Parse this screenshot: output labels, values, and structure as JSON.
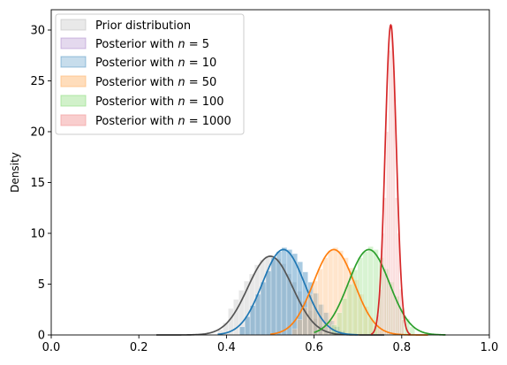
{
  "chart_data": {
    "type": "histogram_kde",
    "title": "",
    "xlabel": "",
    "ylabel": "Density",
    "xlim": [
      0.0,
      1.0
    ],
    "ylim": [
      0,
      32
    ],
    "x_ticks": [
      "0.0",
      "0.2",
      "0.4",
      "0.6",
      "0.8",
      "1.0"
    ],
    "y_ticks": [
      "0",
      "5",
      "10",
      "15",
      "20",
      "25",
      "30"
    ],
    "grid": false,
    "legend_position": "top-left",
    "series": [
      {
        "name": "Prior distribution",
        "color": "#555555",
        "fill": "#bfbfbf",
        "bins": {
          "x_start": 0.38,
          "x_end": 0.62,
          "heights": [
            0.5,
            1.2,
            2.6,
            3.5,
            4.4,
            5.3,
            6.0,
            6.9,
            7.4,
            7.7,
            7.8,
            7.5,
            7.0,
            6.0,
            5.2,
            4.3,
            3.3,
            2.4,
            1.6,
            0.9
          ]
        },
        "kde": {
          "peak_x": 0.5,
          "peak_y": 7.75,
          "sd": 0.051,
          "range": [
            0.24,
            0.76
          ]
        }
      },
      {
        "name": "Posterior with $n = 5$",
        "color": "#9467bd",
        "fill": "#9467bd",
        "bins": null,
        "kde": null
      },
      {
        "name": "Posterior with $n = 10$",
        "color": "#1f77b4",
        "fill": "#1f77b4",
        "bins": {
          "x_start": 0.43,
          "x_end": 0.67,
          "heights": [
            0.8,
            1.8,
            2.9,
            4.0,
            5.2,
            6.3,
            7.6,
            8.2,
            8.6,
            8.4,
            8.0,
            7.2,
            6.2,
            5.2,
            4.1,
            3.0,
            2.2,
            1.4,
            0.8,
            0.4
          ]
        },
        "kde": {
          "peak_x": 0.53,
          "peak_y": 8.4,
          "sd": 0.048,
          "range": [
            0.38,
            0.7
          ]
        }
      },
      {
        "name": "Posterior with $n = 50$",
        "color": "#ff7f0e",
        "fill": "#ffbb78",
        "bins": {
          "x_start": 0.55,
          "x_end": 0.76,
          "heights": [
            0.6,
            1.5,
            2.7,
            4.0,
            5.3,
            6.5,
            7.6,
            8.3,
            8.6,
            8.3,
            7.6,
            6.6,
            5.4,
            4.0,
            2.8,
            1.7,
            0.9,
            0.4
          ]
        },
        "kde": {
          "peak_x": 0.645,
          "peak_y": 8.4,
          "sd": 0.047,
          "range": [
            0.5,
            0.86
          ]
        }
      },
      {
        "name": "Posterior with $n = 100$",
        "color": "#2ca02c",
        "fill": "#98df8a",
        "bins": {
          "x_start": 0.64,
          "x_end": 0.83,
          "heights": [
            1.0,
            2.2,
            3.6,
            5.0,
            6.4,
            7.6,
            8.2,
            8.7,
            8.4,
            7.6,
            6.5,
            5.2,
            3.8,
            2.6,
            1.6,
            0.8
          ]
        },
        "kde": {
          "peak_x": 0.725,
          "peak_y": 8.4,
          "sd": 0.047,
          "range": [
            0.6,
            0.9
          ]
        }
      },
      {
        "name": "Posterior with $n = 1000$",
        "color": "#d62728",
        "fill": "#f4a6a6",
        "bins": {
          "x_start": 0.745,
          "x_end": 0.805,
          "heights": [
            2.0,
            4.5,
            10.0,
            13.5,
            20.0,
            28.0,
            30.5,
            26.0,
            13.5,
            10.0,
            4.5,
            1.5
          ]
        },
        "kde": {
          "peak_x": 0.775,
          "peak_y": 30.5,
          "sd": 0.0128,
          "range": [
            0.73,
            0.82
          ]
        }
      }
    ]
  },
  "legend": {
    "entries": [
      {
        "label": "Prior distribution",
        "n": ""
      },
      {
        "label": "Posterior with ",
        "n": "5"
      },
      {
        "label": "Posterior with ",
        "n": "10"
      },
      {
        "label": "Posterior with ",
        "n": "50"
      },
      {
        "label": "Posterior with ",
        "n": "100"
      },
      {
        "label": "Posterior with ",
        "n": "1000"
      }
    ]
  }
}
